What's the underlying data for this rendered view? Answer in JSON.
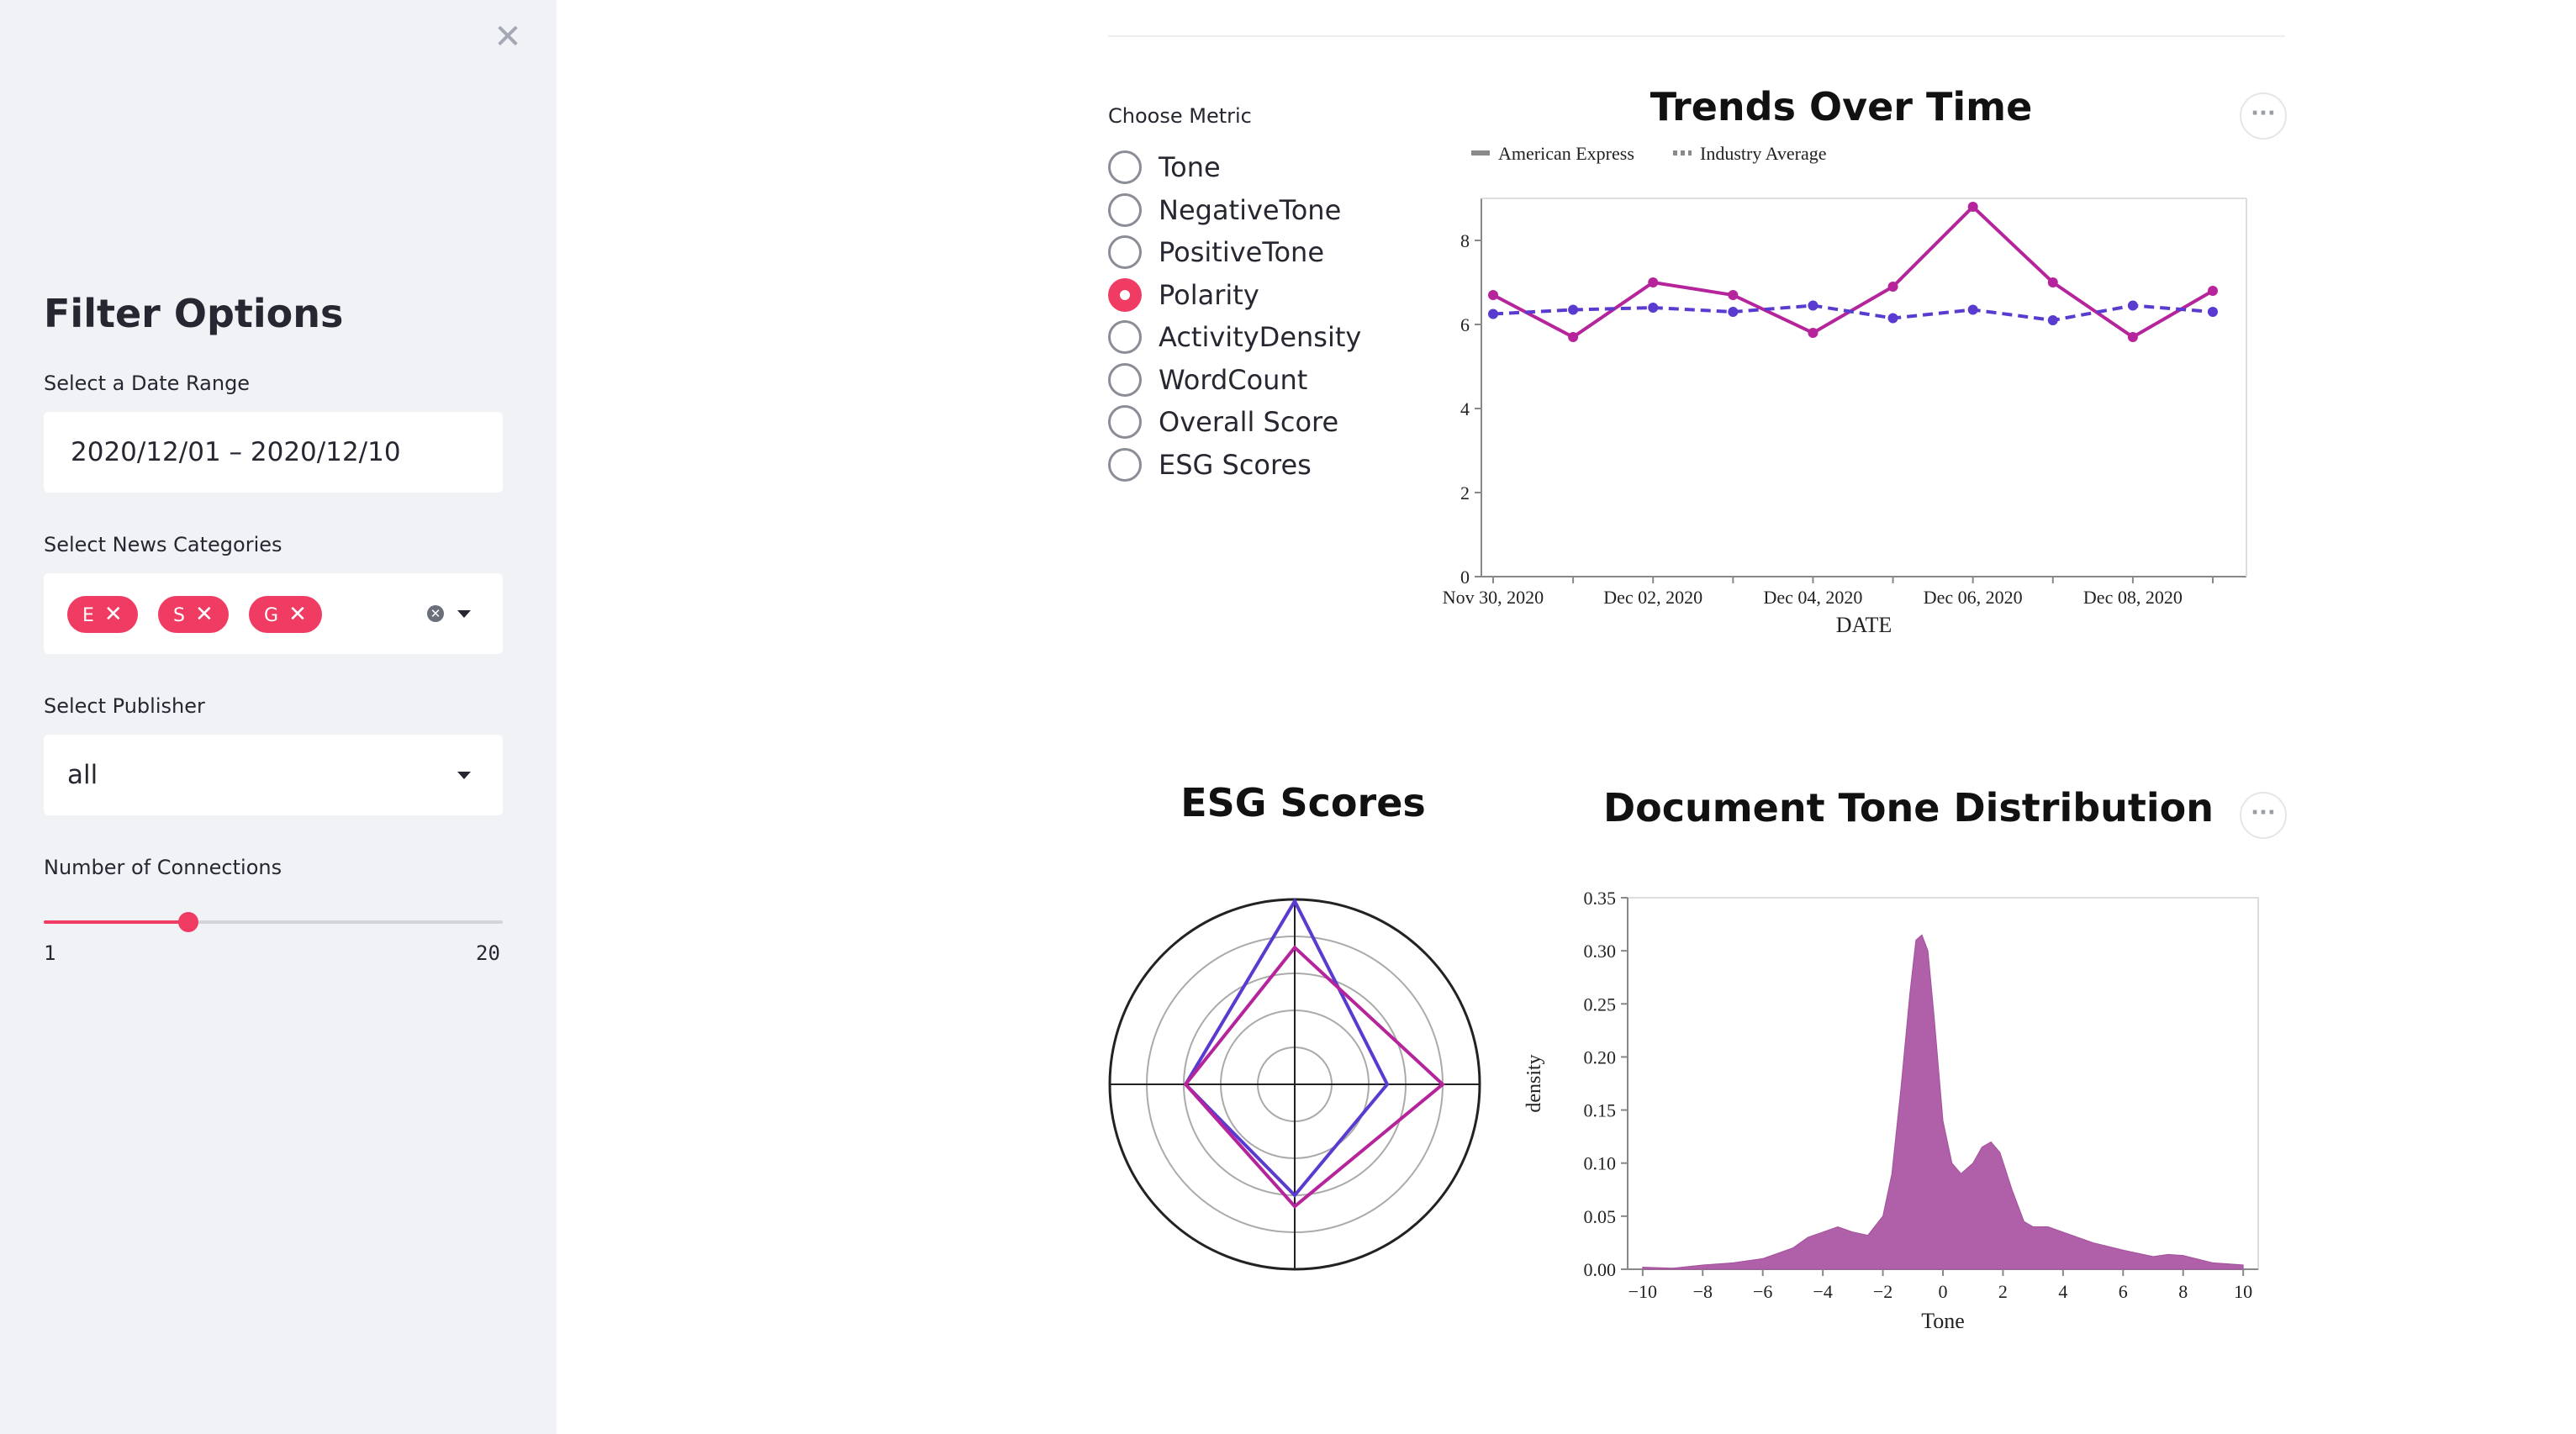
{
  "sidebar": {
    "title": "Filter Options",
    "date_range": {
      "label": "Select a Date Range",
      "value": "2020/12/01 – 2020/12/10"
    },
    "categories": {
      "label": "Select News Categories",
      "chips": [
        "E",
        "S",
        "G"
      ]
    },
    "publisher": {
      "label": "Select Publisher",
      "value": "all"
    },
    "connections": {
      "label": "Number of Connections",
      "min": "1",
      "max": "20",
      "value": 7
    }
  },
  "metric": {
    "label": "Choose Metric",
    "options": [
      "Tone",
      "NegativeTone",
      "PositiveTone",
      "Polarity",
      "ActivityDensity",
      "WordCount",
      "Overall Score",
      "ESG Scores"
    ],
    "selected": "Polarity"
  },
  "colors": {
    "accent": "#f03b63",
    "amex": "#b5249a",
    "industry": "#5a3bd0",
    "density": "#b060a8"
  },
  "chart_data": [
    {
      "type": "line",
      "title": "Trends Over Time",
      "xlabel": "DATE",
      "ylabel": "",
      "x_ticks": [
        "Nov 30, 2020",
        "Dec 02, 2020",
        "Dec 04, 2020",
        "Dec 06, 2020",
        "Dec 08, 2020"
      ],
      "x": [
        "2020-11-30",
        "2020-12-01",
        "2020-12-02",
        "2020-12-03",
        "2020-12-04",
        "2020-12-05",
        "2020-12-06",
        "2020-12-07",
        "2020-12-08",
        "2020-12-09"
      ],
      "ylim": [
        0,
        9
      ],
      "y_ticks": [
        0,
        2,
        4,
        6,
        8
      ],
      "legend": "top",
      "series": [
        {
          "name": "American Express",
          "style": "solid",
          "values": [
            6.7,
            5.7,
            7.0,
            6.7,
            5.8,
            6.9,
            8.8,
            7.0,
            5.7,
            6.8
          ]
        },
        {
          "name": "Industry Average",
          "style": "dashed",
          "values": [
            6.25,
            6.35,
            6.4,
            6.3,
            6.45,
            6.15,
            6.35,
            6.1,
            6.45,
            6.3
          ]
        }
      ]
    },
    {
      "type": "radar",
      "title": "ESG Scores",
      "rmax": 1,
      "series": [
        {
          "name": "",
          "color": "#5a3bd0",
          "values": [
            0.99,
            0.5,
            0.6,
            0.59
          ]
        },
        {
          "name": "",
          "color": "#b5249a",
          "values": [
            0.74,
            0.8,
            0.66,
            0.59
          ]
        }
      ]
    },
    {
      "type": "area",
      "title": "Document Tone Distribution",
      "xlabel": "Tone",
      "ylabel": "density",
      "xlim": [
        -10.5,
        10.5
      ],
      "ylim": [
        0,
        0.35
      ],
      "x_ticks": [
        -10,
        -8,
        -6,
        -4,
        -2,
        0,
        2,
        4,
        6,
        8,
        10
      ],
      "y_ticks": [
        0.0,
        0.05,
        0.1,
        0.15,
        0.2,
        0.25,
        0.3,
        0.35
      ],
      "x": [
        -10,
        -9,
        -8,
        -7,
        -6,
        -5,
        -4.5,
        -4,
        -3.5,
        -3,
        -2.5,
        -2,
        -1.7,
        -1.4,
        -1.1,
        -0.9,
        -0.7,
        -0.5,
        -0.3,
        0,
        0.3,
        0.6,
        1,
        1.3,
        1.6,
        1.9,
        2.3,
        2.7,
        3,
        3.5,
        4,
        5,
        6,
        7,
        7.5,
        8,
        9,
        10
      ],
      "y": [
        0.002,
        0.001,
        0.004,
        0.006,
        0.01,
        0.02,
        0.03,
        0.035,
        0.04,
        0.035,
        0.032,
        0.05,
        0.09,
        0.17,
        0.26,
        0.31,
        0.315,
        0.3,
        0.24,
        0.14,
        0.1,
        0.09,
        0.1,
        0.115,
        0.12,
        0.11,
        0.075,
        0.045,
        0.04,
        0.04,
        0.035,
        0.025,
        0.018,
        0.012,
        0.014,
        0.013,
        0.006,
        0.004
      ]
    }
  ]
}
